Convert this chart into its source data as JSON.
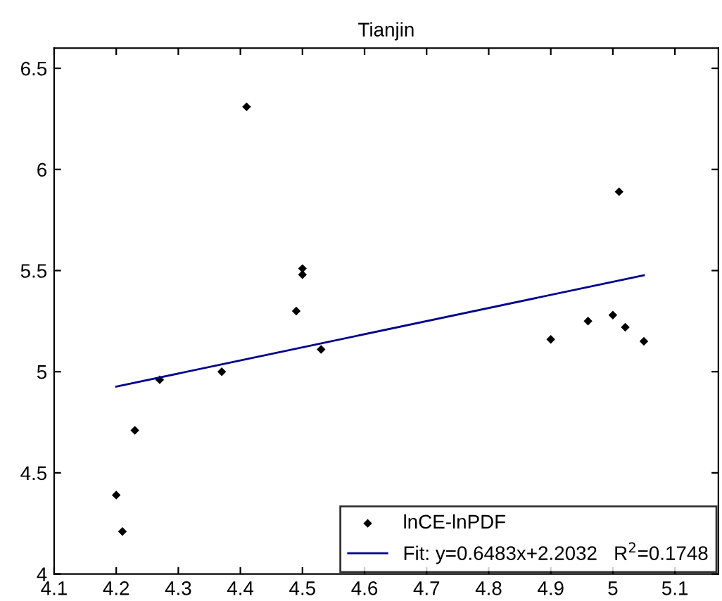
{
  "chart_data": {
    "type": "scatter",
    "title": "Tianjin",
    "xlim": [
      4.1,
      5.17
    ],
    "ylim": [
      4,
      6.6
    ],
    "xticks": [
      4.1,
      4.2,
      4.3,
      4.4,
      4.5,
      4.6,
      4.7,
      4.8,
      4.9,
      5,
      5.1
    ],
    "yticks": [
      4,
      4.5,
      5,
      5.5,
      6,
      6.5
    ],
    "grid": false,
    "legend": "bottom right",
    "marker": "diamond",
    "series": [
      {
        "name": "lnCE-lnPDF",
        "color": "#000000",
        "x": [
          4.2,
          4.21,
          4.23,
          4.27,
          4.37,
          4.41,
          4.49,
          4.5,
          4.5,
          4.53,
          4.9,
          4.96,
          5.0,
          5.01,
          5.02,
          5.05
        ],
        "values": [
          4.39,
          4.21,
          4.71,
          4.96,
          5.0,
          6.31,
          5.3,
          5.51,
          5.48,
          5.11,
          5.16,
          5.25,
          5.28,
          5.89,
          5.22,
          5.15
        ]
      },
      {
        "type": "line",
        "name": "Fit: y=0.6483x+2.2032   R$^{2}$=0.1748",
        "color": "#00008b",
        "line_style": "solid",
        "marker": "none",
        "x": [
          4.2,
          5.05
        ],
        "values": [
          4.926,
          5.477
        ]
      }
    ]
  }
}
